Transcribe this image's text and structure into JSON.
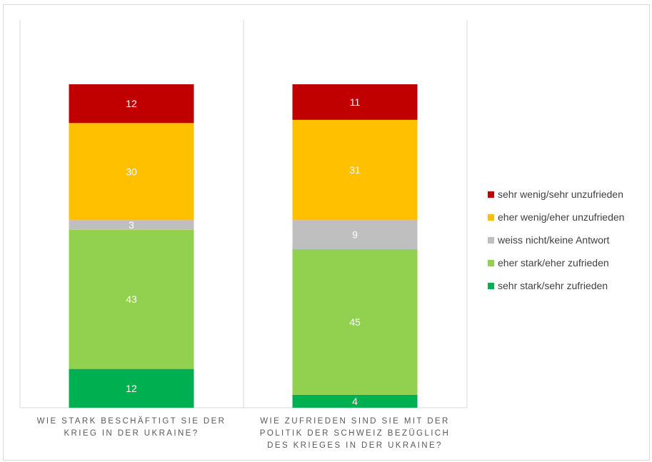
{
  "chart_data": {
    "type": "bar",
    "stacked": true,
    "percent": true,
    "categories": [
      "WIE STARK BESCHÄFTIGT SIE DER\nKRIEG IN DER UKRAINE?",
      "WIE ZUFRIEDEN SIND SIE MIT DER\nPOLITIK DER SCHWEIZ BEZÜGLICH\nDES KRIEGES IN DER UKRAINE?"
    ],
    "series": [
      {
        "name": "sehr stark/sehr zufrieden",
        "color": "#00b050",
        "values": [
          12,
          4
        ]
      },
      {
        "name": "eher stark/eher zufrieden",
        "color": "#92d050",
        "values": [
          43,
          45
        ]
      },
      {
        "name": "weiss nicht/keine Antwort",
        "color": "#bfbfbf",
        "values": [
          3,
          9
        ]
      },
      {
        "name": "eher wenig/eher unzufrieden",
        "color": "#ffc000",
        "values": [
          30,
          31
        ]
      },
      {
        "name": "sehr wenig/sehr unzufrieden",
        "color": "#c00000",
        "values": [
          12,
          11
        ]
      }
    ],
    "legend_order": [
      "sehr wenig/sehr unzufrieden",
      "eher wenig/eher unzufrieden",
      "weiss nicht/keine Antwort",
      "eher stark/eher zufrieden",
      "sehr stark/sehr zufrieden"
    ],
    "ylim": [
      0,
      100
    ],
    "grid": false,
    "legend_position": "right"
  }
}
